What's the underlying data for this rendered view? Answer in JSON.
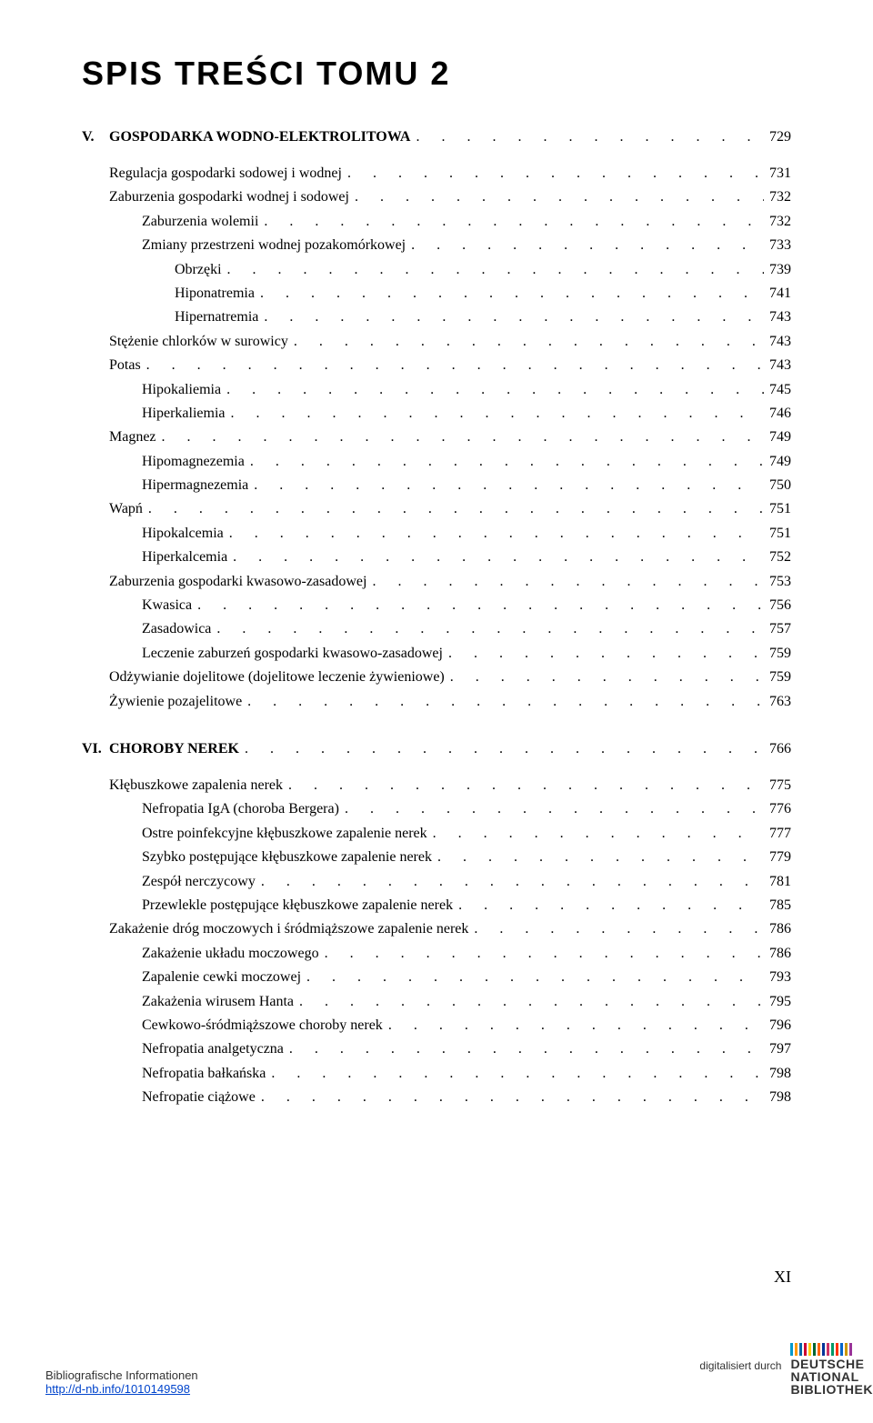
{
  "title": "SPIS TREŚCI TOMU 2",
  "sections": [
    {
      "number": "V.",
      "title": "GOSPODARKA WODNO-ELEKTROLITOWA",
      "page": "729",
      "entries": [
        {
          "label": "Regulacja gospodarki sodowej i wodnej",
          "page": "731",
          "indent": 0
        },
        {
          "label": "Zaburzenia gospodarki wodnej i sodowej",
          "page": "732",
          "indent": 0
        },
        {
          "label": "Zaburzenia wolemii",
          "page": "732",
          "indent": 1
        },
        {
          "label": "Zmiany przestrzeni wodnej pozakomórkowej",
          "page": "733",
          "indent": 1
        },
        {
          "label": "Obrzęki",
          "page": "739",
          "indent": 2
        },
        {
          "label": "Hiponatremia",
          "page": "741",
          "indent": 2
        },
        {
          "label": "Hipernatremia",
          "page": "743",
          "indent": 2
        },
        {
          "label": "Stężenie chlorków w surowicy",
          "page": "743",
          "indent": 0
        },
        {
          "label": "Potas",
          "page": "743",
          "indent": 0
        },
        {
          "label": "Hipokaliemia",
          "page": "745",
          "indent": 1
        },
        {
          "label": "Hiperkaliemia",
          "page": "746",
          "indent": 1
        },
        {
          "label": "Magnez",
          "page": "749",
          "indent": 0
        },
        {
          "label": "Hipomagnezemia",
          "page": "749",
          "indent": 1
        },
        {
          "label": "Hipermagnezemia",
          "page": "750",
          "indent": 1
        },
        {
          "label": "Wapń",
          "page": "751",
          "indent": 0
        },
        {
          "label": "Hipokalcemia",
          "page": "751",
          "indent": 1
        },
        {
          "label": "Hiperkalcemia",
          "page": "752",
          "indent": 1
        },
        {
          "label": "Zaburzenia gospodarki kwasowo-zasadowej",
          "page": "753",
          "indent": 0
        },
        {
          "label": "Kwasica",
          "page": "756",
          "indent": 1
        },
        {
          "label": "Zasadowica",
          "page": "757",
          "indent": 1
        },
        {
          "label": "Leczenie zaburzeń gospodarki kwasowo-zasadowej",
          "page": "759",
          "indent": 1
        },
        {
          "label": "Odżywianie dojelitowe (dojelitowe leczenie żywieniowe)",
          "page": "759",
          "indent": 0
        },
        {
          "label": "Żywienie pozajelitowe",
          "page": "763",
          "indent": 0
        }
      ]
    },
    {
      "number": "VI.",
      "title": "CHOROBY NEREK",
      "page": "766",
      "entries": [
        {
          "label": "Kłębuszkowe zapalenia nerek",
          "page": "775",
          "indent": 0
        },
        {
          "label": "Nefropatia IgA (choroba Bergera)",
          "page": "776",
          "indent": 1
        },
        {
          "label": "Ostre poinfekcyjne kłębuszkowe zapalenie nerek",
          "page": "777",
          "indent": 1
        },
        {
          "label": "Szybko postępujące kłębuszkowe zapalenie nerek",
          "page": "779",
          "indent": 1
        },
        {
          "label": "Zespół nerczycowy",
          "page": "781",
          "indent": 1
        },
        {
          "label": "Przewlekle postępujące kłębuszkowe zapalenie nerek",
          "page": "785",
          "indent": 1
        },
        {
          "label": "Zakażenie dróg moczowych i śródmiąższowe zapalenie nerek",
          "page": "786",
          "indent": 0
        },
        {
          "label": "Zakażenie układu moczowego",
          "page": "786",
          "indent": 1
        },
        {
          "label": "Zapalenie cewki moczowej",
          "page": "793",
          "indent": 1
        },
        {
          "label": "Zakażenia wirusem Hanta",
          "page": "795",
          "indent": 1
        },
        {
          "label": "Cewkowo-śródmiąższowe choroby nerek",
          "page": "796",
          "indent": 1
        },
        {
          "label": "Nefropatia analgetyczna",
          "page": "797",
          "indent": 1
        },
        {
          "label": "Nefropatia bałkańska",
          "page": "798",
          "indent": 1
        },
        {
          "label": "Nefropatie ciążowe",
          "page": "798",
          "indent": 1
        }
      ]
    }
  ],
  "pageNumber": "XI",
  "footer": {
    "bibliographic": "Bibliografische Informationen",
    "link": "http://d-nb.info/1010149598",
    "digitized": "digitalisiert durch",
    "dnbLines": [
      "DEUTSCHE",
      "NATIONAL",
      "BIBLIOTHEK"
    ],
    "barColors": [
      "#0099cc",
      "#ff9900",
      "#0066aa",
      "#cc0033",
      "#ffcc00",
      "#006633",
      "#ff6600",
      "#003399",
      "#cc3366",
      "#009966",
      "#ff3300",
      "#0066cc",
      "#cc9900",
      "#993399"
    ]
  },
  "dotFill": ". . . . . . . . . . . . . . . . . . . . . . . . . . . . . . . . . . . . . . . . . . . . . . . . . ."
}
